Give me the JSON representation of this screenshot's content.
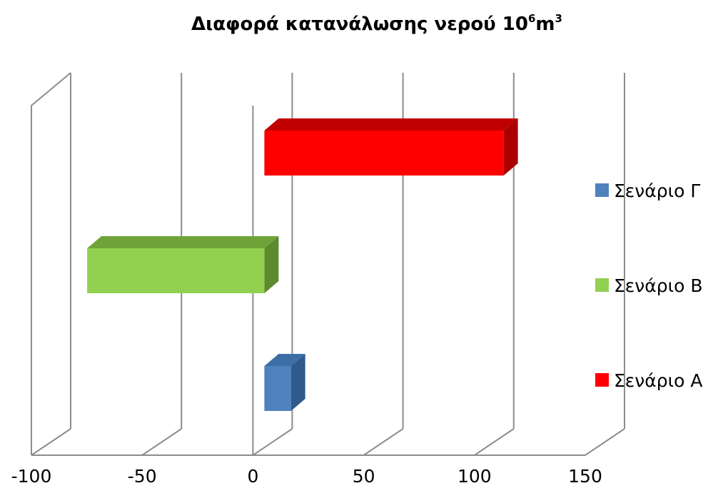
{
  "chart_data": {
    "type": "bar",
    "orientation": "horizontal",
    "three_d": true,
    "title": "Διαφορά κατανάλωσης νερού 10",
    "title_superscript": "6",
    "title_suffix": "m",
    "title_suffix_superscript": "3",
    "xlabel": "",
    "ylabel": "",
    "xlim": [
      -100,
      150
    ],
    "ticks": [
      -100,
      -50,
      0,
      50,
      100,
      150
    ],
    "tick_labels": [
      "-100",
      "-50",
      "0",
      "50",
      "100",
      "150"
    ],
    "grid": true,
    "legend_position": "right",
    "series": [
      {
        "name": "Σενάριο Α",
        "value": 108,
        "color": "#ff0000",
        "side": "#aa0000",
        "top": "#c00000"
      },
      {
        "name": "Σενάριο Β",
        "value": -80,
        "color": "#92d050",
        "side": "#5e8a2e",
        "top": "#6fa33a"
      },
      {
        "name": "Σενάριο Γ",
        "value": 12,
        "color": "#4f81bd",
        "side": "#2e5a8c",
        "top": "#3d6ea6"
      }
    ],
    "legend_order": [
      "Σενάριο Γ",
      "Σενάριο Β",
      "Σενάριο Α"
    ]
  }
}
